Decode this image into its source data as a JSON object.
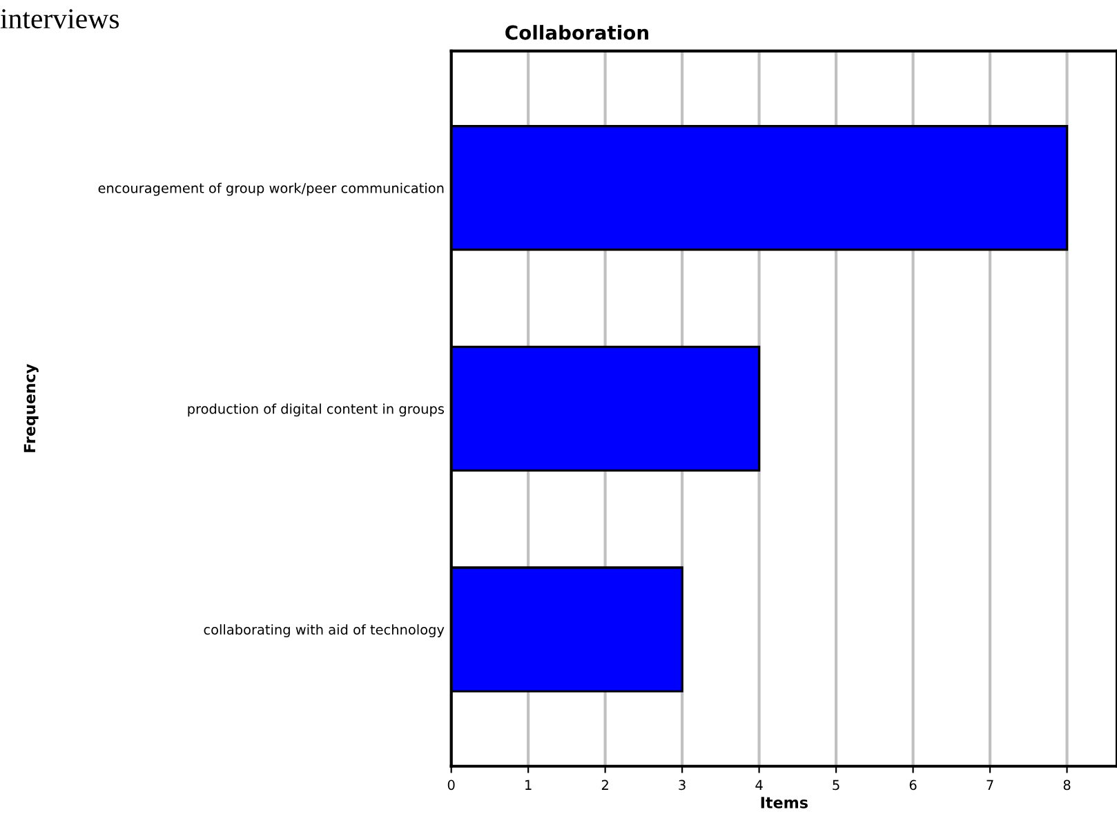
{
  "chart_data": {
    "type": "bar",
    "orientation": "horizontal",
    "title": "Collaboration",
    "xlabel": "Items",
    "ylabel": "Frequency",
    "categories": [
      "encouragement of group work/peer communication",
      "production of digital content in groups",
      "collaborating with aid of technology"
    ],
    "values": [
      8,
      4,
      3
    ],
    "color": "#0000ff",
    "xlim": [
      0,
      8.65
    ],
    "xticks": [
      0,
      1,
      2,
      3,
      4,
      5,
      6,
      7,
      8
    ],
    "grid": "x",
    "legend": false,
    "annotations": [
      "interviews"
    ]
  }
}
